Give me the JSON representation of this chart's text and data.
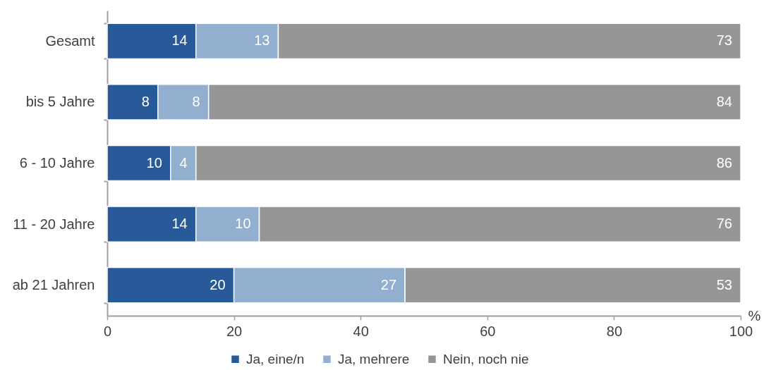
{
  "chart_data": {
    "type": "bar",
    "orientation": "horizontal",
    "stacked": true,
    "categories": [
      "Gesamt",
      "bis 5 Jahre",
      "6 - 10 Jahre",
      "11 - 20 Jahre",
      "ab 21 Jahren"
    ],
    "series": [
      {
        "name": "Ja, eine/n",
        "color": "#285a99",
        "values": [
          14,
          8,
          10,
          14,
          20
        ]
      },
      {
        "name": "Ja, mehrere",
        "color": "#93afcf",
        "values": [
          13,
          8,
          4,
          10,
          27
        ]
      },
      {
        "name": "Nein, noch nie",
        "color": "#969696",
        "values": [
          73,
          84,
          86,
          76,
          53
        ]
      }
    ],
    "xlabel": "%",
    "xlim": [
      0,
      100
    ],
    "xticks": [
      0,
      20,
      40,
      60,
      80,
      100
    ],
    "data_labels": true,
    "legend": "bottom"
  }
}
